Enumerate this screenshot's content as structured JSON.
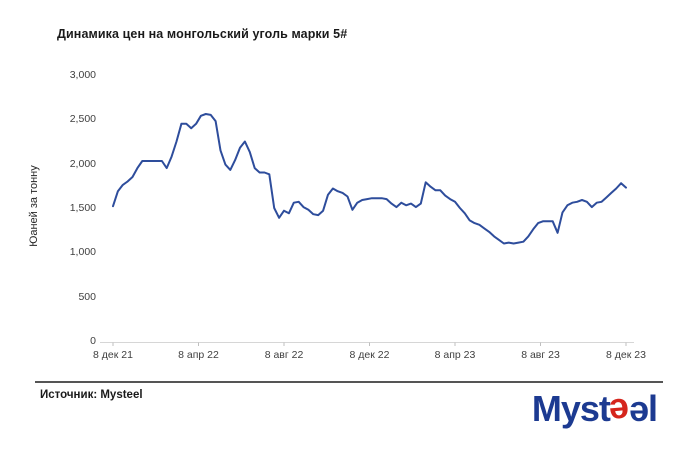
{
  "header": {
    "title": "Динамика цен на монгольский уголь марки 5#"
  },
  "footer": {
    "source_label": "Источник: Mysteel"
  },
  "logo": {
    "prefix": "Myst",
    "e_red": "e",
    "e_blue": "ə",
    "suffix": "l",
    "navy_color": "#1c3a91",
    "red_color": "#d5251d"
  },
  "chart_data": {
    "type": "line",
    "title": "Динамика цен на монгольский уголь марки 5#",
    "xlabel": "",
    "ylabel": "Юаней за тонну",
    "ylim": [
      0,
      3000
    ],
    "ytick_labels": [
      "0",
      "500",
      "1,000",
      "1,500",
      "2,000",
      "2,500",
      "3,000"
    ],
    "ytick_values": [
      0,
      500,
      1000,
      1500,
      2000,
      2500,
      3000
    ],
    "xtick_labels": [
      "8 дек 21",
      "8 апр 22",
      "8 авг 22",
      "8 дек 22",
      "8 апр 23",
      "8 авг 23",
      "8 дек 23"
    ],
    "grid": false,
    "legend": "none",
    "axis_color": "#d6d6d6",
    "tick_color": "#bfbfbf",
    "series": [
      {
        "name": "Цена на монгольский уголь марки 5#",
        "color": "#2e4d9c",
        "x_unit": "weekly, 8 дек 21 — 8 дек 23",
        "values": [
          1520,
          1690,
          1760,
          1800,
          1850,
          1950,
          2030,
          2030,
          2030,
          2030,
          2030,
          1950,
          2080,
          2250,
          2450,
          2450,
          2400,
          2450,
          2540,
          2560,
          2550,
          2480,
          2150,
          1990,
          1930,
          2040,
          2180,
          2250,
          2130,
          1950,
          1900,
          1900,
          1880,
          1500,
          1390,
          1470,
          1440,
          1560,
          1570,
          1510,
          1480,
          1430,
          1420,
          1470,
          1650,
          1720,
          1690,
          1670,
          1630,
          1480,
          1560,
          1590,
          1600,
          1610,
          1610,
          1610,
          1600,
          1550,
          1510,
          1560,
          1530,
          1550,
          1510,
          1550,
          1790,
          1740,
          1700,
          1700,
          1640,
          1600,
          1570,
          1500,
          1440,
          1360,
          1330,
          1310,
          1270,
          1230,
          1180,
          1140,
          1100,
          1110,
          1100,
          1110,
          1120,
          1180,
          1260,
          1330,
          1350,
          1350,
          1350,
          1220,
          1450,
          1530,
          1560,
          1570,
          1590,
          1570,
          1510,
          1560,
          1570,
          1620,
          1670,
          1720,
          1780,
          1730
        ]
      }
    ]
  }
}
